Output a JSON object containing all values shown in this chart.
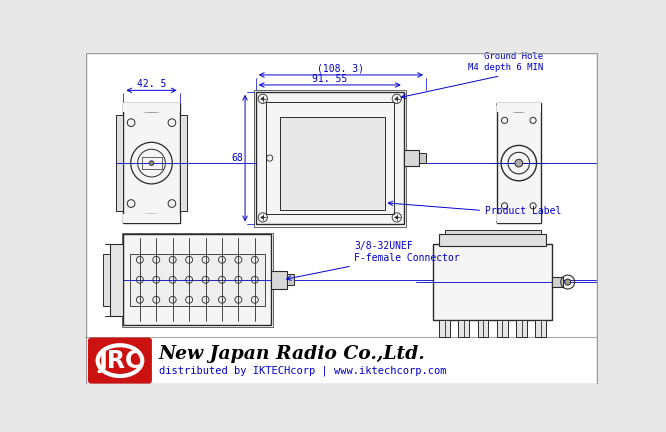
{
  "bg_color": "#e8e8e8",
  "drawing_bg": "#ffffff",
  "line_color": "#2a2a2a",
  "dim_color": "#0000cc",
  "jrc_red": "#cc1111",
  "dim_42_5": "42. 5",
  "dim_108_3": "(108. 3)",
  "dim_91_55": "91. 55",
  "dim_68": "68",
  "label_ground": "Ground Hole\nM4 depth 6 MIN",
  "label_product": "Product Label",
  "label_connector": "3/8-32UNEF\nF-female Connector",
  "title_text": "New Japan Radio Co.,Ltd.",
  "subtitle_text": "distributed by IKTECHcorp | www.iktechcorp.com"
}
